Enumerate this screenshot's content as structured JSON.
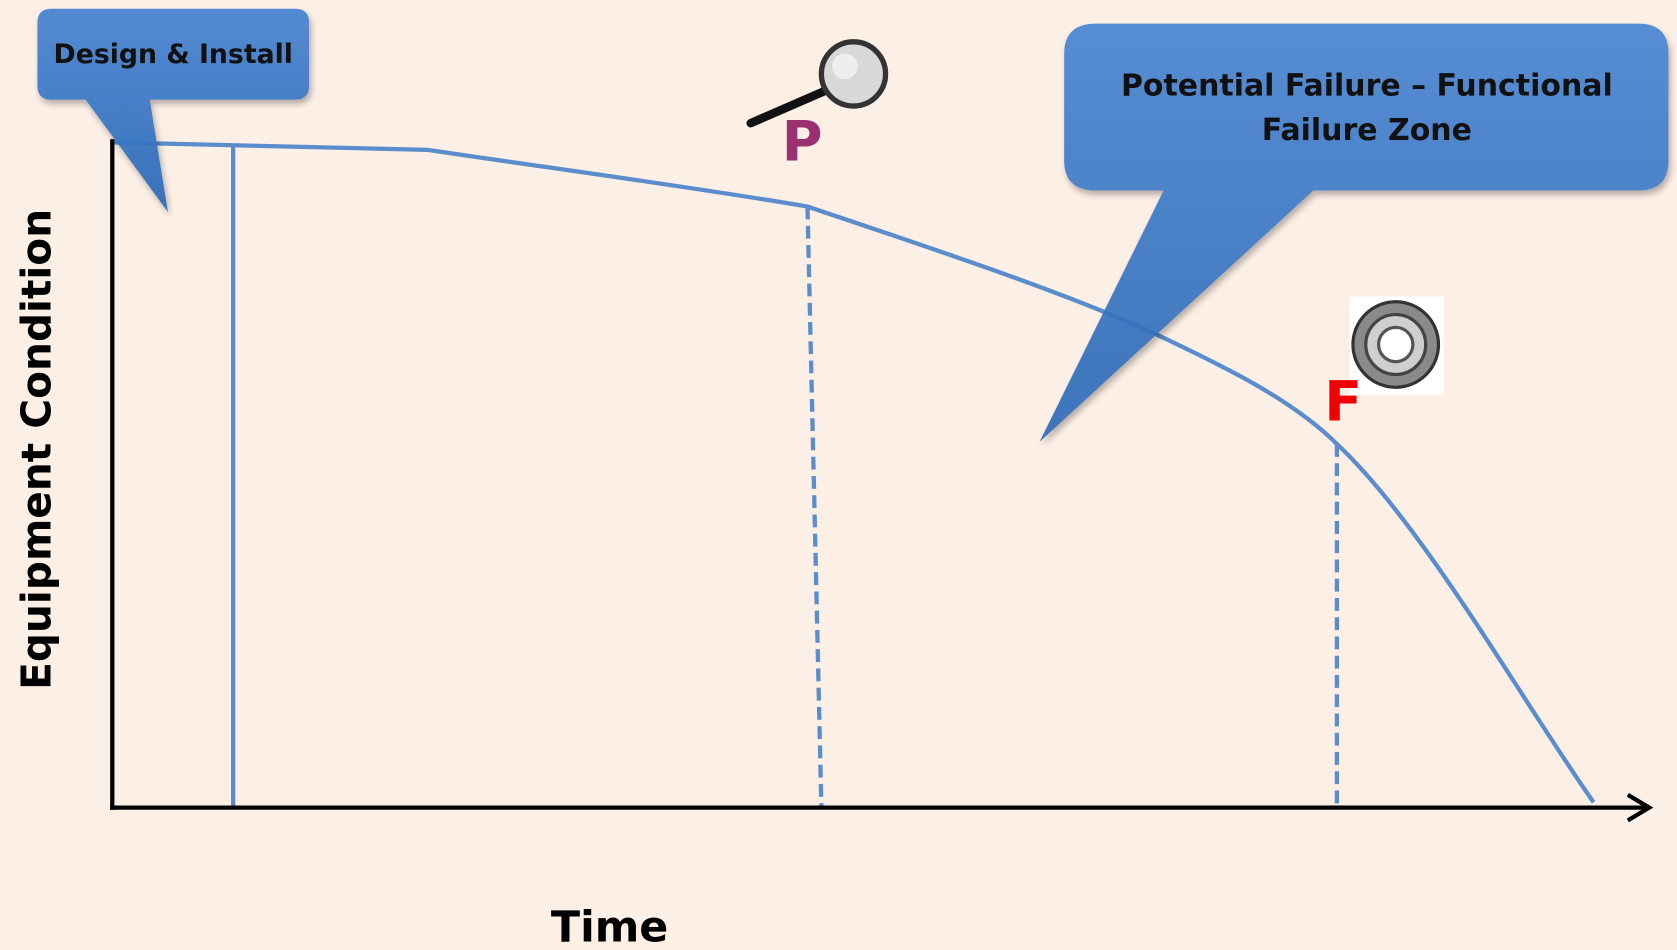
{
  "callouts": {
    "design": "Design & Install",
    "zone": [
      "Potential Failure – Functional",
      "Failure Zone"
    ]
  },
  "axes": {
    "y_label": "Equipment Condition",
    "x_label": "Time"
  },
  "points": {
    "p": "P",
    "f": "F"
  }
}
